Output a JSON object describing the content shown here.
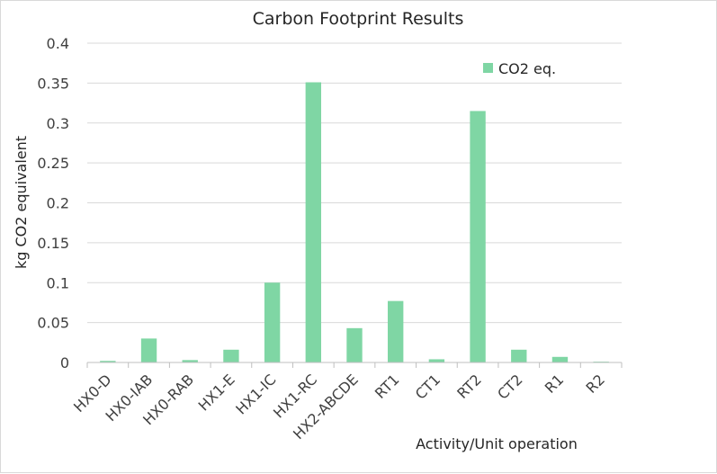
{
  "chart_data": {
    "type": "bar",
    "title": "Carbon Footprint Results",
    "xlabel": "Activity/Unit operation",
    "ylabel": "kg CO2 equivalent",
    "ylim": [
      0,
      0.4
    ],
    "yticks": [
      "0",
      "0.05",
      "0.1",
      "0.15",
      "0.2",
      "0.25",
      "0.3",
      "0.35",
      "0.4"
    ],
    "categories": [
      "HX0-D",
      "HX0-IAB",
      "HX0-RAB",
      "HX1-E",
      "HX1-IC",
      "HX1-RC",
      "HX2-ABCDE",
      "RT1",
      "CT1",
      "RT2",
      "CT2",
      "R1",
      "R2"
    ],
    "series": [
      {
        "name": "CO2 eq.",
        "color": "#7fd6a4",
        "values": [
          0.002,
          0.03,
          0.003,
          0.016,
          0.1,
          0.351,
          0.043,
          0.077,
          0.004,
          0.315,
          0.016,
          0.007,
          0.001
        ]
      }
    ],
    "grid": true,
    "legend": "top-right"
  }
}
